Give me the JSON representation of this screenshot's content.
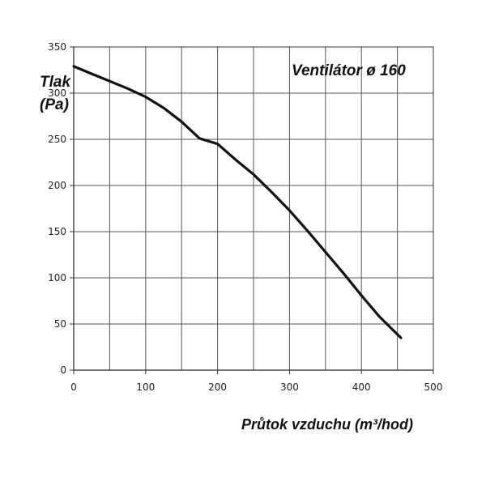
{
  "chart_data": {
    "type": "line",
    "title": "Ventilátor ø 160",
    "ylabel_line1": "Tlak",
    "ylabel_line2": "(Pa)",
    "xlabel": "Průtok vzduchu (m³/hod)",
    "xlim": [
      0,
      500
    ],
    "ylim": [
      0,
      350
    ],
    "xticks": [
      0,
      100,
      200,
      300,
      400,
      500
    ],
    "yticks": [
      0,
      50,
      100,
      150,
      200,
      250,
      300,
      350
    ],
    "x_grid_step": 50,
    "grid": true,
    "series": [
      {
        "color": "#111111",
        "points": [
          [
            0,
            329
          ],
          [
            25,
            321
          ],
          [
            50,
            313
          ],
          [
            75,
            305
          ],
          [
            100,
            296
          ],
          [
            125,
            284
          ],
          [
            150,
            269
          ],
          [
            175,
            251
          ],
          [
            200,
            245
          ],
          [
            225,
            228
          ],
          [
            250,
            212
          ],
          [
            275,
            193
          ],
          [
            300,
            173
          ],
          [
            325,
            151
          ],
          [
            350,
            128
          ],
          [
            375,
            105
          ],
          [
            400,
            81
          ],
          [
            425,
            58
          ],
          [
            455,
            35
          ]
        ]
      }
    ]
  }
}
